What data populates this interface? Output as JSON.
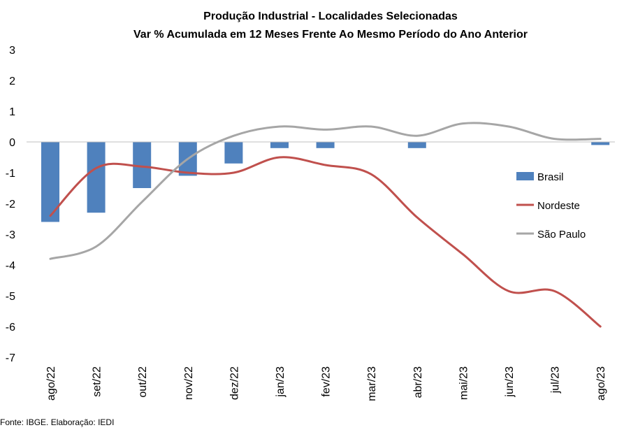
{
  "chart_data": {
    "type": "bar",
    "title": "Produção Industrial - Localidades Selecionadas",
    "subtitle": "Var % Acumulada em 12 Meses Frente Ao Mesmo Período do Ano Anterior",
    "xlabel": "",
    "ylabel": "",
    "ylim": [
      -7,
      3
    ],
    "yticks": [
      "3",
      "2",
      "1",
      "0",
      "-1",
      "-2",
      "-3",
      "-4",
      "-5",
      "-6",
      "-7"
    ],
    "grid": false,
    "legend_position": "right",
    "categories": [
      "ago/22",
      "set/22",
      "out/22",
      "nov/22",
      "dez/22",
      "jan/23",
      "fev/23",
      "mar/23",
      "abr/23",
      "mai/23",
      "jun/23",
      "jul/23",
      "ago/23"
    ],
    "series": [
      {
        "name": "Brasil",
        "kind": "bar",
        "color": "#4F81BD",
        "values": [
          -2.6,
          -2.3,
          -1.5,
          -1.1,
          -0.7,
          -0.2,
          -0.2,
          0.0,
          -0.2,
          0.0,
          0.0,
          0.0,
          -0.1
        ]
      },
      {
        "name": "Nordeste",
        "kind": "line",
        "color": "#C0504D",
        "values": [
          -2.4,
          -0.85,
          -0.8,
          -1.0,
          -1.0,
          -0.5,
          -0.75,
          -1.05,
          -2.45,
          -3.65,
          -4.85,
          -4.85,
          -6.0
        ]
      },
      {
        "name": "São Paulo",
        "kind": "line",
        "color": "#A6A6A6",
        "values": [
          -3.8,
          -3.4,
          -1.95,
          -0.55,
          0.2,
          0.5,
          0.4,
          0.5,
          0.2,
          0.6,
          0.5,
          0.1,
          0.1
        ]
      }
    ]
  },
  "footer": {
    "source": "Fonte: IBGE. Elaboração: IEDI"
  }
}
